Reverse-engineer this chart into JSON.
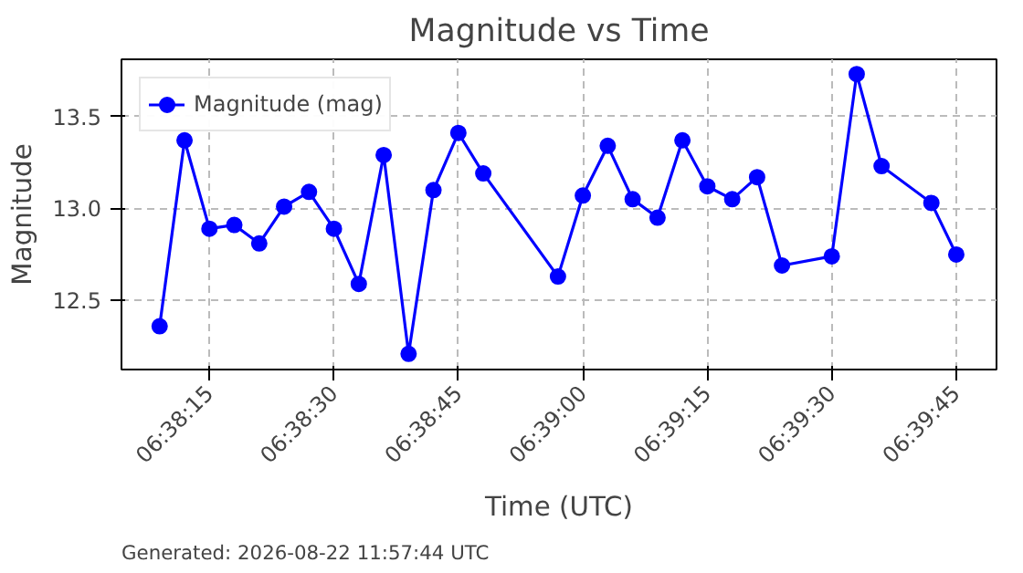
{
  "chart_data": {
    "type": "line",
    "title": "Magnitude vs Time",
    "xlabel": "Time (UTC)",
    "ylabel": "Magnitude",
    "annotations": [
      "Generated: 2026-08-22 11:57:44 UTC"
    ],
    "x": [
      6.635833,
      6.636667,
      6.6375,
      6.638333,
      6.639167,
      6.64,
      6.640833,
      6.641667,
      6.6425,
      6.643333,
      6.644167,
      6.645,
      6.645833,
      6.646667,
      6.649167,
      6.65,
      6.650833,
      6.651667,
      6.6525,
      6.653333,
      6.654167,
      6.655,
      6.655833,
      6.656667,
      6.658333,
      6.659167,
      6.66,
      6.661667,
      6.6625
    ],
    "series": [
      {
        "name": "Magnitude (mag)",
        "color": "#0000ff",
        "values": [
          12.36,
          13.37,
          12.89,
          12.91,
          12.81,
          13.01,
          13.09,
          12.89,
          12.59,
          13.29,
          12.21,
          13.1,
          13.41,
          13.19,
          12.63,
          13.07,
          13.34,
          13.05,
          12.95,
          13.37,
          13.12,
          13.05,
          13.17,
          12.69,
          12.74,
          13.73,
          13.23,
          13.03,
          12.75
        ]
      }
    ],
    "xlim": [
      6.634556,
      6.663847
    ],
    "ylim": [
      12.125,
      13.81
    ],
    "xticks": [
      {
        "value": 6.6375,
        "label": "06:38:15"
      },
      {
        "value": 6.641667,
        "label": "06:38:30"
      },
      {
        "value": 6.645833,
        "label": "06:38:45"
      },
      {
        "value": 6.65,
        "label": "06:39:00"
      },
      {
        "value": 6.654167,
        "label": "06:39:15"
      },
      {
        "value": 6.658333,
        "label": "06:39:30"
      },
      {
        "value": 6.6625,
        "label": "06:39:45"
      }
    ],
    "yticks": [
      {
        "value": 12.5,
        "label": "12.5"
      },
      {
        "value": 13.0,
        "label": "13.0"
      },
      {
        "value": 13.5,
        "label": "13.5"
      }
    ],
    "grid": true,
    "legend": "top left",
    "marker": "circle",
    "line_style": "solid"
  }
}
